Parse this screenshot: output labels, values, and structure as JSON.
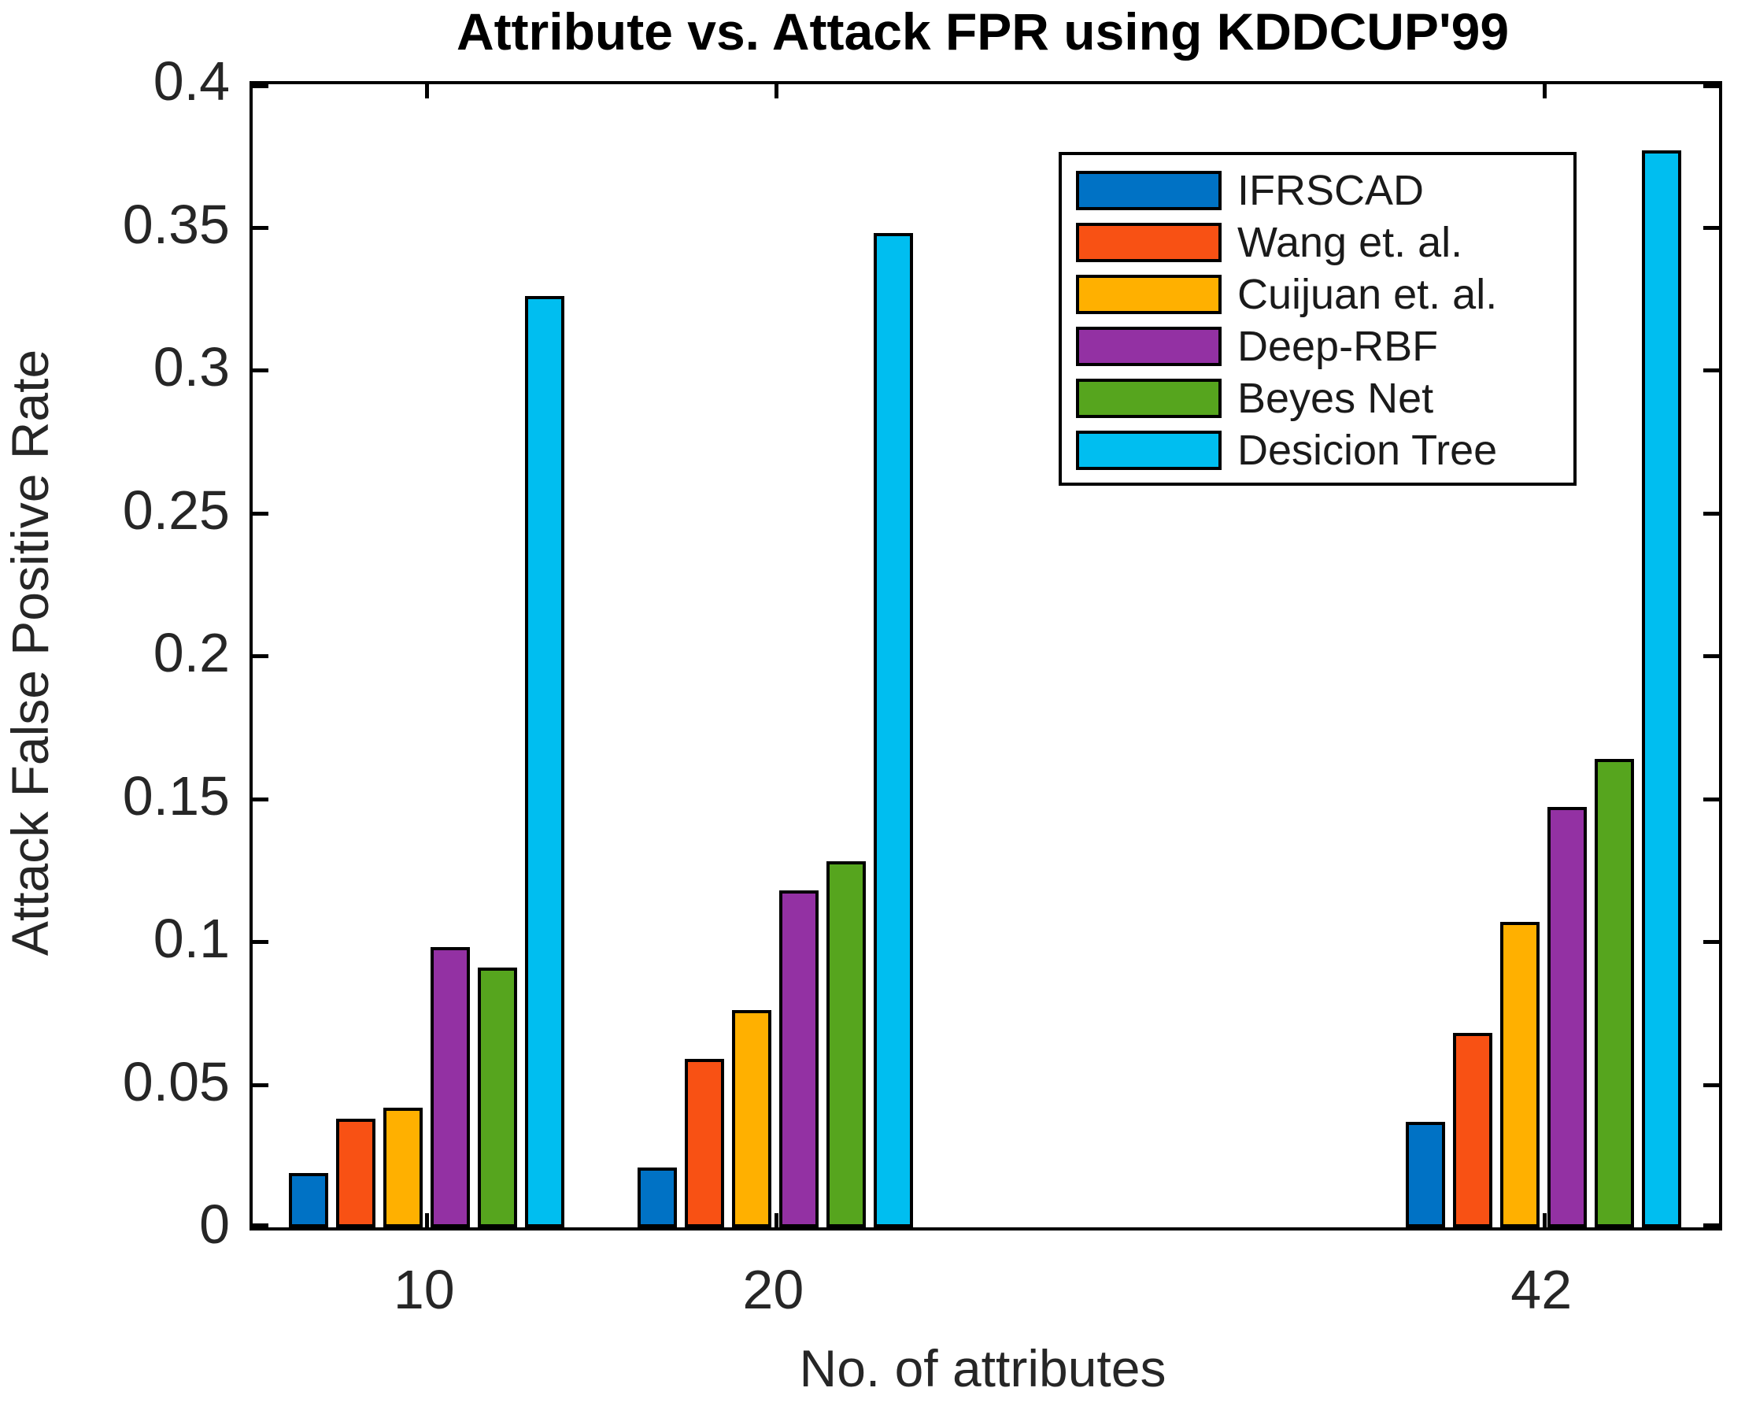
{
  "chart_data": {
    "type": "bar",
    "title": "Attribute vs. Attack FPR using KDDCUP'99",
    "xlabel": "No. of attributes",
    "ylabel": "Attack False Positive Rate",
    "categories": [
      10,
      20,
      42
    ],
    "x_tick_labels": [
      "10",
      "20",
      "42"
    ],
    "series": [
      {
        "name": "IFRSCAD",
        "color": "#0072C5",
        "values": [
          0.019,
          0.021,
          0.037
        ]
      },
      {
        "name": "Wang et. al.",
        "color": "#F85114",
        "values": [
          0.038,
          0.059,
          0.068
        ]
      },
      {
        "name": "Cuijuan et. al.",
        "color": "#FFB000",
        "values": [
          0.042,
          0.076,
          0.107
        ]
      },
      {
        "name": "Deep-RBF",
        "color": "#9331A3",
        "values": [
          0.098,
          0.118,
          0.147
        ]
      },
      {
        "name": "Beyes Net",
        "color": "#56A51E",
        "values": [
          0.091,
          0.128,
          0.164
        ]
      },
      {
        "name": "Desicion Tree",
        "color": "#00BEF0",
        "values": [
          0.326,
          0.348,
          0.377
        ]
      }
    ],
    "ylim": [
      0,
      0.4
    ],
    "xlim": [
      5,
      47
    ],
    "y_tick_labels": [
      "0",
      "0.05",
      "0.1",
      "0.15",
      "0.2",
      "0.25",
      "0.3",
      "0.35",
      "0.4"
    ],
    "y_tick_values": [
      0,
      0.05,
      0.1,
      0.15,
      0.2,
      0.25,
      0.3,
      0.35,
      0.4
    ],
    "grid": false,
    "legend_position": "top-right-inside",
    "axis_color": "#000000",
    "tick_label_color": "#262626"
  }
}
